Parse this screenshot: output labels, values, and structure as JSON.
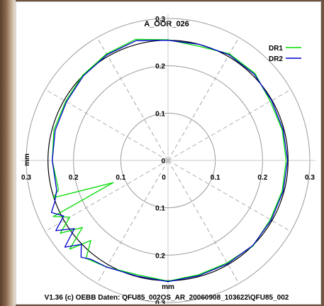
{
  "chart_data": {
    "type": "polar-line",
    "title": "A_OOR_026",
    "footer": "V1.36 (c) OEBB Daten: QFU85_002OS_AR_20060908_103622\\QFU85_002",
    "radial_unit": "mm",
    "rlim": [
      0,
      0.3
    ],
    "ring_ticks": [
      "0.3",
      "0.2",
      "0.1",
      "0",
      "0.1",
      "0.2",
      "0.3"
    ],
    "y_tick_labels": [
      "0.3",
      "0.2",
      "0.1",
      "0",
      "0.1",
      "0.2",
      "0.3"
    ],
    "x_tick_labels": [
      "0.3",
      "0.2",
      "0.1",
      "0",
      "0.1",
      "0.2",
      "0.3"
    ],
    "spoke_step_deg": 30,
    "grid": true,
    "legend_position": "top-right",
    "reference_circle": {
      "radius": 0.254,
      "color": "#000000"
    },
    "series": [
      {
        "name": "DR1",
        "color": "#00dd00",
        "angle_deg": [
          0,
          15,
          30,
          45,
          60,
          75,
          90,
          105,
          120,
          135,
          150,
          165,
          180,
          195,
          198,
          202,
          206,
          210,
          214,
          218,
          222,
          226,
          230,
          240,
          255,
          270,
          285,
          300,
          315,
          330,
          345,
          360
        ],
        "radius_mm": [
          0.25,
          0.25,
          0.25,
          0.26,
          0.26,
          0.25,
          0.255,
          0.265,
          0.26,
          0.255,
          0.25,
          0.25,
          0.245,
          0.24,
          0.255,
          0.125,
          0.27,
          0.24,
          0.275,
          0.23,
          0.28,
          0.235,
          0.27,
          0.26,
          0.25,
          0.255,
          0.25,
          0.25,
          0.255,
          0.25,
          0.25,
          0.25
        ]
      },
      {
        "name": "DR2",
        "color": "#0000cc",
        "angle_deg": [
          0,
          15,
          30,
          45,
          60,
          75,
          90,
          105,
          120,
          135,
          150,
          165,
          180,
          195,
          200,
          204,
          208,
          212,
          216,
          220,
          224,
          228,
          232,
          240,
          255,
          270,
          285,
          300,
          315,
          330,
          345,
          360
        ],
        "radius_mm": [
          0.253,
          0.252,
          0.253,
          0.258,
          0.258,
          0.254,
          0.254,
          0.262,
          0.258,
          0.253,
          0.248,
          0.247,
          0.245,
          0.244,
          0.255,
          0.27,
          0.25,
          0.28,
          0.245,
          0.285,
          0.255,
          0.275,
          0.265,
          0.26,
          0.253,
          0.256,
          0.252,
          0.252,
          0.254,
          0.252,
          0.252,
          0.253
        ]
      }
    ]
  }
}
